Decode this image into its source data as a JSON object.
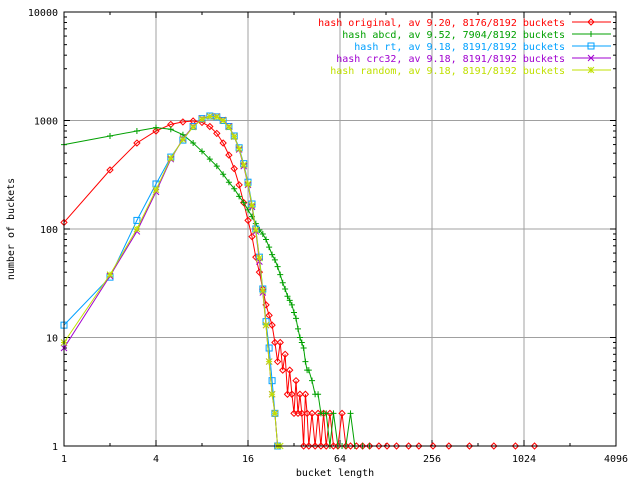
{
  "chart_data": {
    "type": "line",
    "title": "",
    "xlabel": "bucket length",
    "ylabel": "number of buckets",
    "x_scale": "log2",
    "y_scale": "log10",
    "xlim": [
      1,
      4096
    ],
    "ylim": [
      1,
      10000
    ],
    "grid": true,
    "legend_position": "top-right",
    "x_ticks": [
      "1",
      "4",
      "16",
      "64",
      "256",
      "1024",
      "4096"
    ],
    "y_ticks": [
      "1",
      "10",
      "100",
      "1000",
      "10000"
    ],
    "series": [
      {
        "name": "hash original, av 9.20, 8176/8192 buckets",
        "color": "#ff0000",
        "marker": "diamond",
        "points": [
          [
            1,
            115
          ],
          [
            2,
            350
          ],
          [
            3,
            620
          ],
          [
            4,
            800
          ],
          [
            5,
            920
          ],
          [
            6,
            970
          ],
          [
            7,
            990
          ],
          [
            8,
            960
          ],
          [
            9,
            880
          ],
          [
            10,
            760
          ],
          [
            11,
            620
          ],
          [
            12,
            480
          ],
          [
            13,
            360
          ],
          [
            14,
            255
          ],
          [
            15,
            175
          ],
          [
            16,
            120
          ],
          [
            17,
            85
          ],
          [
            18,
            55
          ],
          [
            19,
            40
          ],
          [
            20,
            28
          ],
          [
            21,
            20
          ],
          [
            22,
            16
          ],
          [
            23,
            13
          ],
          [
            24,
            9
          ],
          [
            25,
            6
          ],
          [
            26,
            9
          ],
          [
            27,
            5
          ],
          [
            28,
            7
          ],
          [
            29,
            3
          ],
          [
            30,
            5
          ],
          [
            31,
            3
          ],
          [
            32,
            2
          ],
          [
            33,
            4
          ],
          [
            34,
            2
          ],
          [
            35,
            3
          ],
          [
            36,
            2
          ],
          [
            37,
            1
          ],
          [
            38,
            3
          ],
          [
            39,
            2
          ],
          [
            40,
            1
          ],
          [
            42,
            2
          ],
          [
            44,
            1
          ],
          [
            46,
            2
          ],
          [
            48,
            1
          ],
          [
            50,
            2
          ],
          [
            52,
            1
          ],
          [
            55,
            2
          ],
          [
            58,
            1
          ],
          [
            62,
            1
          ],
          [
            66,
            2
          ],
          [
            70,
            1
          ],
          [
            75,
            1
          ],
          [
            82,
            1
          ],
          [
            90,
            1
          ],
          [
            100,
            1
          ],
          [
            115,
            1
          ],
          [
            130,
            1
          ],
          [
            150,
            1
          ],
          [
            180,
            1
          ],
          [
            210,
            1
          ],
          [
            260,
            1
          ],
          [
            330,
            1
          ],
          [
            450,
            1
          ],
          [
            650,
            1
          ],
          [
            900,
            1
          ],
          [
            1200,
            1
          ]
        ]
      },
      {
        "name": "hash abcd, av 9.52, 7904/8192 buckets",
        "color": "#00a000",
        "marker": "plus",
        "points": [
          [
            1,
            600
          ],
          [
            2,
            720
          ],
          [
            3,
            800
          ],
          [
            4,
            860
          ],
          [
            5,
            830
          ],
          [
            6,
            740
          ],
          [
            7,
            620
          ],
          [
            8,
            520
          ],
          [
            9,
            440
          ],
          [
            10,
            380
          ],
          [
            11,
            320
          ],
          [
            12,
            270
          ],
          [
            13,
            235
          ],
          [
            14,
            200
          ],
          [
            15,
            175
          ],
          [
            16,
            150
          ],
          [
            17,
            130
          ],
          [
            18,
            112
          ],
          [
            19,
            98
          ],
          [
            20,
            90
          ],
          [
            21,
            80
          ],
          [
            22,
            68
          ],
          [
            23,
            58
          ],
          [
            24,
            52
          ],
          [
            25,
            45
          ],
          [
            26,
            38
          ],
          [
            27,
            32
          ],
          [
            28,
            28
          ],
          [
            29,
            24
          ],
          [
            30,
            22
          ],
          [
            31,
            20
          ],
          [
            32,
            17
          ],
          [
            33,
            15
          ],
          [
            34,
            12
          ],
          [
            35,
            10
          ],
          [
            36,
            9
          ],
          [
            37,
            8
          ],
          [
            38,
            6
          ],
          [
            39,
            5
          ],
          [
            40,
            5
          ],
          [
            42,
            4
          ],
          [
            44,
            3
          ],
          [
            46,
            3
          ],
          [
            48,
            2
          ],
          [
            50,
            2
          ],
          [
            52,
            2
          ],
          [
            55,
            1
          ],
          [
            58,
            2
          ],
          [
            62,
            1
          ],
          [
            66,
            1
          ],
          [
            70,
            1
          ],
          [
            75,
            2
          ],
          [
            80,
            1
          ],
          [
            90,
            1
          ],
          [
            100,
            1
          ]
        ]
      },
      {
        "name": "hash rt, av 9.18, 8191/8192 buckets",
        "color": "#00a0ff",
        "marker": "square",
        "points": [
          [
            1,
            13
          ],
          [
            2,
            36
          ],
          [
            3,
            120
          ],
          [
            4,
            260
          ],
          [
            5,
            460
          ],
          [
            6,
            660
          ],
          [
            7,
            880
          ],
          [
            8,
            1040
          ],
          [
            9,
            1100
          ],
          [
            10,
            1080
          ],
          [
            11,
            1000
          ],
          [
            12,
            880
          ],
          [
            13,
            720
          ],
          [
            14,
            560
          ],
          [
            15,
            400
          ],
          [
            16,
            270
          ],
          [
            17,
            170
          ],
          [
            18,
            100
          ],
          [
            19,
            55
          ],
          [
            20,
            28
          ],
          [
            21,
            14
          ],
          [
            22,
            8
          ],
          [
            23,
            4
          ],
          [
            24,
            2
          ],
          [
            25,
            1
          ]
        ]
      },
      {
        "name": "hash crc32, av 9.18, 8191/8192 buckets",
        "color": "#a000d0",
        "marker": "cross",
        "points": [
          [
            1,
            8
          ],
          [
            2,
            37
          ],
          [
            3,
            95
          ],
          [
            4,
            220
          ],
          [
            5,
            440
          ],
          [
            6,
            680
          ],
          [
            7,
            880
          ],
          [
            8,
            1040
          ],
          [
            9,
            1090
          ],
          [
            10,
            1090
          ],
          [
            11,
            1010
          ],
          [
            12,
            880
          ],
          [
            13,
            710
          ],
          [
            14,
            540
          ],
          [
            15,
            380
          ],
          [
            16,
            255
          ],
          [
            17,
            160
          ],
          [
            18,
            95
          ],
          [
            19,
            50
          ],
          [
            20,
            26
          ],
          [
            21,
            13
          ],
          [
            22,
            6
          ],
          [
            23,
            3
          ],
          [
            24,
            2
          ],
          [
            25,
            1
          ]
        ]
      },
      {
        "name": "hash random, av 9.18, 8191/8192 buckets",
        "color": "#c0e000",
        "marker": "star",
        "points": [
          [
            1,
            9
          ],
          [
            2,
            38
          ],
          [
            3,
            100
          ],
          [
            4,
            230
          ],
          [
            5,
            450
          ],
          [
            6,
            670
          ],
          [
            7,
            870
          ],
          [
            8,
            1030
          ],
          [
            9,
            1090
          ],
          [
            10,
            1080
          ],
          [
            11,
            1000
          ],
          [
            12,
            870
          ],
          [
            13,
            710
          ],
          [
            14,
            550
          ],
          [
            15,
            390
          ],
          [
            16,
            260
          ],
          [
            17,
            165
          ],
          [
            18,
            98
          ],
          [
            19,
            54
          ],
          [
            20,
            27
          ],
          [
            21,
            13
          ],
          [
            22,
            6
          ],
          [
            23,
            3
          ],
          [
            24,
            2
          ],
          [
            25,
            1
          ],
          [
            26,
            1
          ]
        ]
      }
    ]
  }
}
